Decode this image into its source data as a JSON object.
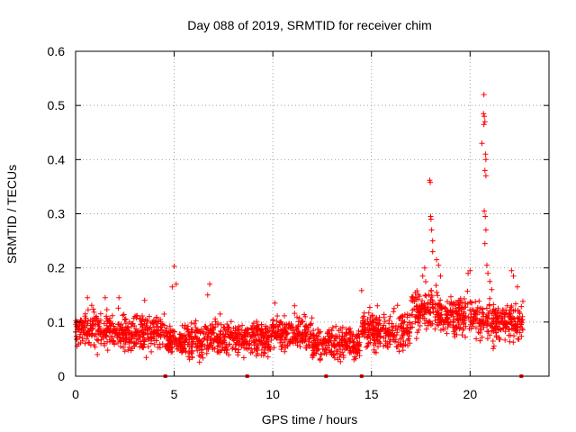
{
  "chart_data": {
    "type": "scatter",
    "title": "Day 088 of 2019, SRMTID for receiver chim",
    "xlabel": "GPS time / hours",
    "ylabel": "SRMTID / TECUs",
    "xlim": [
      0,
      24
    ],
    "ylim": [
      0,
      0.6
    ],
    "xticks": [
      0,
      5,
      10,
      15,
      20
    ],
    "xtick_labels": [
      "0",
      "5",
      "10",
      "15",
      "20"
    ],
    "yticks": [
      0,
      0.1,
      0.2,
      0.3,
      0.4,
      0.5,
      0.6
    ],
    "ytick_labels": [
      "0",
      "0.1",
      "0.2",
      "0.3",
      "0.4",
      "0.5",
      "0.6"
    ],
    "grid": true,
    "marker": "+",
    "series": [
      {
        "name": "SRMTID",
        "color": "#ff0000",
        "baseline_segments": [
          {
            "x_start": 0.0,
            "x_end": 2.5,
            "mean": 0.085,
            "spread": 0.03
          },
          {
            "x_start": 2.5,
            "x_end": 4.5,
            "mean": 0.08,
            "spread": 0.028
          },
          {
            "x_start": 4.5,
            "x_end": 7.0,
            "mean": 0.065,
            "spread": 0.028
          },
          {
            "x_start": 7.0,
            "x_end": 10.0,
            "mean": 0.07,
            "spread": 0.028
          },
          {
            "x_start": 10.0,
            "x_end": 12.0,
            "mean": 0.08,
            "spread": 0.025
          },
          {
            "x_start": 12.0,
            "x_end": 14.5,
            "mean": 0.06,
            "spread": 0.025
          },
          {
            "x_start": 14.5,
            "x_end": 17.0,
            "mean": 0.085,
            "spread": 0.03
          },
          {
            "x_start": 17.0,
            "x_end": 18.5,
            "mean": 0.12,
            "spread": 0.035
          },
          {
            "x_start": 18.5,
            "x_end": 20.5,
            "mean": 0.11,
            "spread": 0.03
          },
          {
            "x_start": 20.5,
            "x_end": 21.5,
            "mean": 0.1,
            "spread": 0.035
          },
          {
            "x_start": 21.5,
            "x_end": 22.7,
            "mean": 0.1,
            "spread": 0.03
          }
        ],
        "notable_points": [
          {
            "x": 0.6,
            "y": 0.145
          },
          {
            "x": 1.5,
            "y": 0.145
          },
          {
            "x": 2.2,
            "y": 0.145
          },
          {
            "x": 3.5,
            "y": 0.14
          },
          {
            "x": 4.9,
            "y": 0.165
          },
          {
            "x": 5.0,
            "y": 0.203
          },
          {
            "x": 5.1,
            "y": 0.17
          },
          {
            "x": 6.8,
            "y": 0.17
          },
          {
            "x": 6.7,
            "y": 0.15
          },
          {
            "x": 10.1,
            "y": 0.135
          },
          {
            "x": 11.1,
            "y": 0.13
          },
          {
            "x": 14.5,
            "y": 0.158
          },
          {
            "x": 15.3,
            "y": 0.13
          },
          {
            "x": 17.6,
            "y": 0.185
          },
          {
            "x": 17.7,
            "y": 0.2
          },
          {
            "x": 17.95,
            "y": 0.362
          },
          {
            "x": 17.98,
            "y": 0.358
          },
          {
            "x": 18.0,
            "y": 0.295
          },
          {
            "x": 18.02,
            "y": 0.29
          },
          {
            "x": 18.05,
            "y": 0.27
          },
          {
            "x": 18.1,
            "y": 0.25
          },
          {
            "x": 18.1,
            "y": 0.23
          },
          {
            "x": 18.3,
            "y": 0.215
          },
          {
            "x": 18.4,
            "y": 0.205
          },
          {
            "x": 18.5,
            "y": 0.185
          },
          {
            "x": 19.9,
            "y": 0.19
          },
          {
            "x": 20.0,
            "y": 0.195
          },
          {
            "x": 20.6,
            "y": 0.43
          },
          {
            "x": 20.7,
            "y": 0.52
          },
          {
            "x": 20.68,
            "y": 0.485
          },
          {
            "x": 20.72,
            "y": 0.48
          },
          {
            "x": 20.75,
            "y": 0.47
          },
          {
            "x": 20.7,
            "y": 0.465
          },
          {
            "x": 20.78,
            "y": 0.41
          },
          {
            "x": 20.8,
            "y": 0.4
          },
          {
            "x": 20.75,
            "y": 0.38
          },
          {
            "x": 20.8,
            "y": 0.37
          },
          {
            "x": 20.72,
            "y": 0.305
          },
          {
            "x": 20.77,
            "y": 0.295
          },
          {
            "x": 20.8,
            "y": 0.27
          },
          {
            "x": 20.75,
            "y": 0.245
          },
          {
            "x": 20.85,
            "y": 0.205
          },
          {
            "x": 20.9,
            "y": 0.19
          },
          {
            "x": 21.0,
            "y": 0.175
          },
          {
            "x": 21.1,
            "y": 0.16
          },
          {
            "x": 22.1,
            "y": 0.195
          },
          {
            "x": 22.2,
            "y": 0.185
          },
          {
            "x": 22.4,
            "y": 0.165
          }
        ]
      }
    ],
    "axis_markers": [
      {
        "x": 4.55,
        "y": 0,
        "axis": "bottom"
      },
      {
        "x": 14.5,
        "y": 0,
        "axis": "bottom"
      },
      {
        "x": 8.7,
        "y": 0,
        "axis": "bottom"
      },
      {
        "x": 12.7,
        "y": 0,
        "axis": "bottom"
      },
      {
        "x": 22.6,
        "y": 0,
        "axis": "bottom"
      }
    ]
  }
}
